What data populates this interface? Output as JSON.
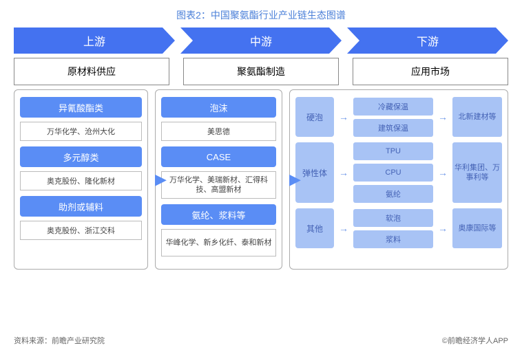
{
  "title": "图表2：中国聚氨酯行业产业链生态图谱",
  "stages": [
    "上游",
    "中游",
    "下游"
  ],
  "subs": [
    "原材料供应",
    "聚氨酯制造",
    "应用市场"
  ],
  "upstream": {
    "cats": [
      {
        "name": "异氰酸酯类",
        "company": "万华化学、沧州大化"
      },
      {
        "name": "多元醇类",
        "company": "奥克股份、隆化新材"
      },
      {
        "name": "助剂或辅料",
        "company": "奥克股份、浙江交科"
      }
    ]
  },
  "midstream": {
    "cats": [
      {
        "name": "泡沫",
        "company": "美思德"
      },
      {
        "name": "CASE",
        "company": "万华化学、美瑞新材、汇得科技、高盟新材"
      },
      {
        "name": "氨纶、浆料等",
        "company": "华峰化学、新乡化纤、泰和新材"
      }
    ]
  },
  "downstream": {
    "groups": [
      {
        "left": "硬泡",
        "mid": [
          "冷藏保温",
          "建筑保温"
        ],
        "right": "北新建材等",
        "h": "h58",
        "lh": ""
      },
      {
        "left": "弹性体",
        "mid": [
          "TPU",
          "CPU",
          "氨纶"
        ],
        "right": "华利集团、万事利等",
        "h": "h88",
        "lh": "tall"
      },
      {
        "left": "其他",
        "mid": [
          "软泡",
          "浆料"
        ],
        "right": "奥康国际等",
        "h": "h58",
        "lh": ""
      }
    ]
  },
  "colors": {
    "primary": "#4472f0",
    "light": "#a8c3f5",
    "text": "#4462b5"
  },
  "footer": {
    "left": "资料来源：前瞻产业研究院",
    "right": "©前瞻经济学人APP"
  }
}
